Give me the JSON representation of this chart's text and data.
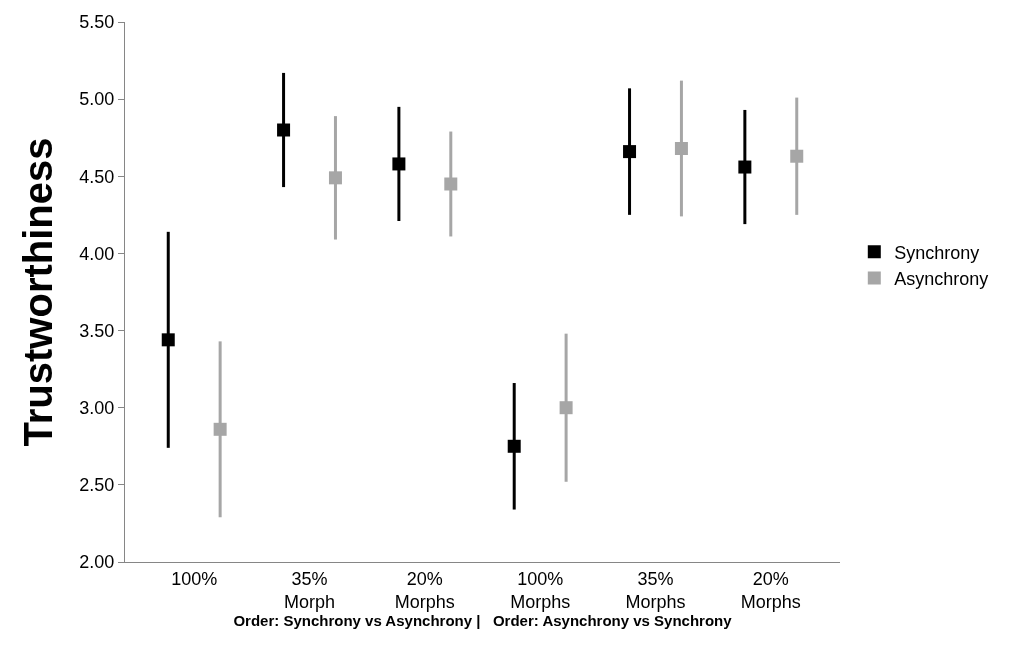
{
  "chart_data": {
    "type": "scatter",
    "ylabel": "Trustworthiness",
    "xlabel": "Order: Synchrony vs Asynchrony |   Order: Asynchrony vs Synchrony",
    "categories": [
      "100%",
      "35%\nMorph",
      "20%\nMorphs",
      "100%\nMorphs",
      "35%\nMorphs",
      "20%\nMorphs"
    ],
    "series": [
      {
        "name": "Synchrony",
        "color": "#000000",
        "values": [
          3.44,
          4.8,
          4.58,
          2.75,
          4.66,
          4.56
        ],
        "errors": [
          0.7,
          0.37,
          0.37,
          0.41,
          0.41,
          0.37
        ]
      },
      {
        "name": "Asynchrony",
        "color": "#a6a6a6",
        "values": [
          2.86,
          4.49,
          4.45,
          3.0,
          4.68,
          4.63
        ],
        "errors": [
          0.57,
          0.4,
          0.34,
          0.48,
          0.44,
          0.38
        ]
      }
    ],
    "ylim": [
      2,
      5.5
    ],
    "yticks": [
      {
        "value": 2,
        "label": "2.00"
      },
      {
        "value": 2.5,
        "label": "2.50"
      },
      {
        "value": 3,
        "label": "3.00"
      },
      {
        "value": 3.5,
        "label": "3.50"
      },
      {
        "value": 4,
        "label": "4.00"
      },
      {
        "value": 4.5,
        "label": "4.50"
      },
      {
        "value": 5,
        "label": "5.00"
      },
      {
        "value": 5.5,
        "label": "5.50"
      }
    ],
    "grid": false,
    "legend": "right",
    "marker": "square"
  }
}
